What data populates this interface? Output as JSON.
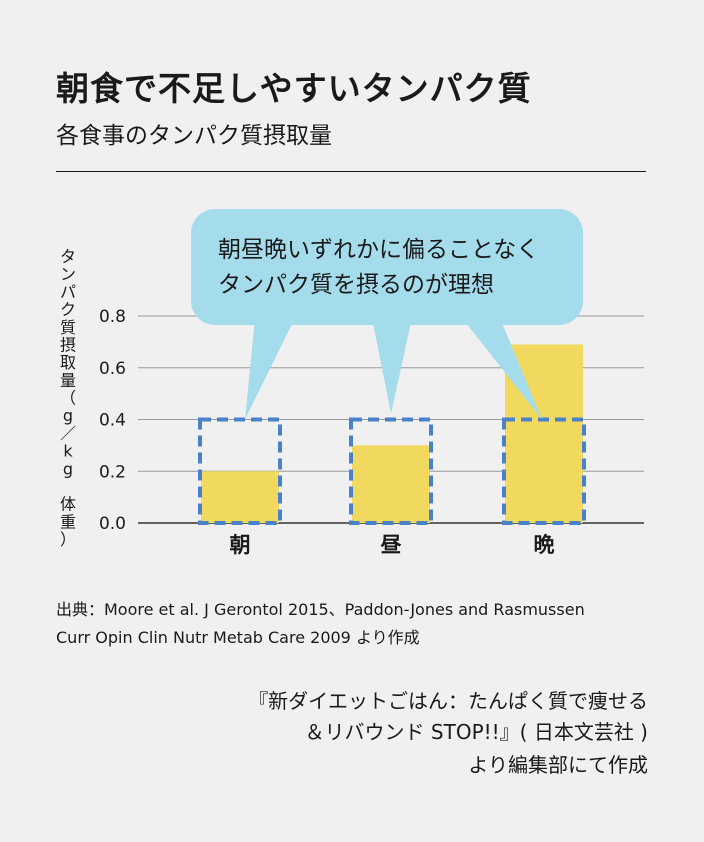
{
  "title": "朝食で不足しやすいタンパク質",
  "subtitle": "各食事のタンパク質摂取量",
  "callout": {
    "line1": "朝昼晩いずれかに偏ることなく",
    "line2": "タンパク質を摂るのが理想"
  },
  "source": {
    "line1": "出典：Moore et al. J Gerontol 2015、Paddon-Jones and Rasmussen",
    "line2": "Curr Opin Clin Nutr Metab Care 2009 より作成"
  },
  "book": {
    "line1": "『新ダイエットごはん：たんぱく質で痩せる",
    "line2": "＆リバウンド STOP!!』( 日本文芸社 )",
    "line3": "より編集部にて作成"
  },
  "colors": {
    "bar": "#f1d95f",
    "target_box": "#4a82c9",
    "callout": "#a5dcec",
    "grid": "#9a9a9a"
  },
  "chart_data": {
    "type": "bar",
    "categories": [
      "朝",
      "昼",
      "晩"
    ],
    "values": [
      0.2,
      0.3,
      0.69
    ],
    "target": 0.4,
    "ylabel": "タンパク質摂取量（g／kg 体重）",
    "ylim": [
      0,
      0.8
    ],
    "yticks": [
      0.0,
      0.2,
      0.4,
      0.6,
      0.8
    ],
    "ytick_labels": [
      "0.0",
      "0.2",
      "0.4",
      "0.6",
      "0.8"
    ],
    "grid": true,
    "legend": "none"
  }
}
